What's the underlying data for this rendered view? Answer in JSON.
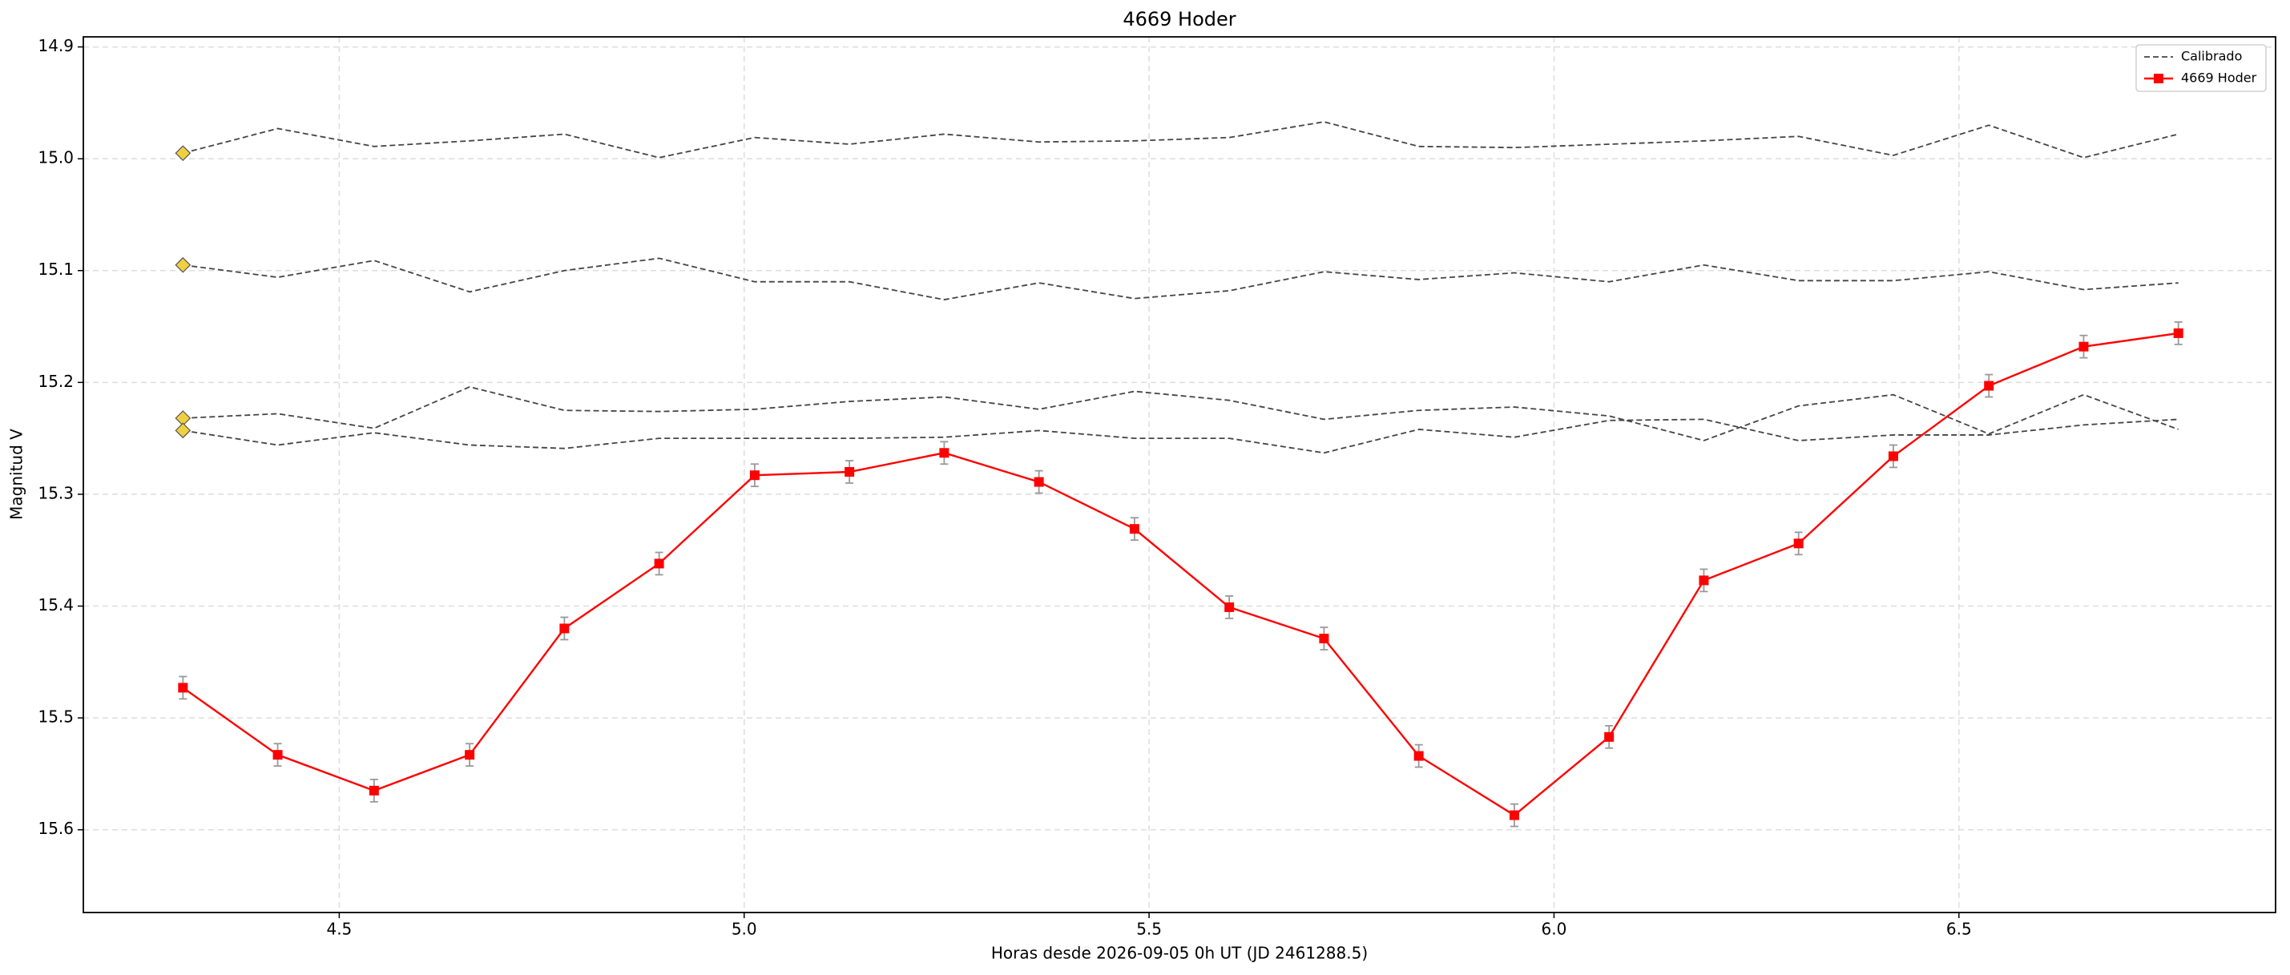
{
  "chart_data": {
    "type": "line",
    "title": "4669 Hoder",
    "xlabel": "Horas desde 2026-09-05 0h UT (JD 2461288.5)",
    "ylabel": "Magnitud V",
    "x": [
      4.307,
      4.424,
      4.543,
      4.661,
      4.778,
      4.895,
      5.013,
      5.13,
      5.247,
      5.364,
      5.482,
      5.599,
      5.716,
      5.833,
      5.951,
      6.068,
      6.185,
      6.302,
      6.419,
      6.537,
      6.654,
      6.771
    ],
    "series": [
      {
        "name": "Calibrado",
        "color": "#444444",
        "dashed": true,
        "marker_color": "#f0d040",
        "lines": [
          [
            14.995,
            14.973,
            14.989,
            14.984,
            14.978,
            14.999,
            14.981,
            14.987,
            14.978,
            14.985,
            14.984,
            14.981,
            14.967,
            14.989,
            14.99,
            14.987,
            14.984,
            14.98,
            14.997,
            14.97,
            14.999,
            14.978
          ],
          [
            15.095,
            15.106,
            15.091,
            15.119,
            15.1,
            15.089,
            15.11,
            15.11,
            15.126,
            15.111,
            15.125,
            15.118,
            15.101,
            15.108,
            15.102,
            15.11,
            15.095,
            15.109,
            15.109,
            15.101,
            15.117,
            15.111
          ],
          [
            15.232,
            15.228,
            15.241,
            15.204,
            15.225,
            15.226,
            15.224,
            15.217,
            15.213,
            15.224,
            15.208,
            15.216,
            15.233,
            15.225,
            15.222,
            15.23,
            15.252,
            15.221,
            15.211,
            15.246,
            15.211,
            15.242
          ],
          [
            15.243,
            15.256,
            15.245,
            15.256,
            15.259,
            15.25,
            15.25,
            15.25,
            15.249,
            15.243,
            15.25,
            15.25,
            15.263,
            15.242,
            15.249,
            15.234,
            15.233,
            15.252,
            15.247,
            15.247,
            15.238,
            15.233
          ]
        ]
      },
      {
        "name": "4669 Hoder",
        "color": "#ff0000",
        "error_color": "#999999",
        "values": [
          15.473,
          15.533,
          15.565,
          15.533,
          15.42,
          15.362,
          15.283,
          15.28,
          15.263,
          15.289,
          15.331,
          15.401,
          15.429,
          15.534,
          15.587,
          15.517,
          15.377,
          15.344,
          15.266,
          15.203,
          15.168,
          15.156
        ],
        "errors": [
          0.01,
          0.01,
          0.01,
          0.01,
          0.01,
          0.01,
          0.01,
          0.01,
          0.01,
          0.01,
          0.01,
          0.01,
          0.01,
          0.01,
          0.01,
          0.01,
          0.01,
          0.01,
          0.01,
          0.01,
          0.01,
          0.01
        ]
      }
    ],
    "xlim": [
      4.184,
      6.891
    ],
    "ylim": [
      14.891,
      15.674
    ],
    "y_inverted": true,
    "xticks": [
      4.5,
      {
        "value": 5,
        "label": "5.0"
      },
      5.5,
      {
        "value": 6,
        "label": "6.0"
      },
      6.5
    ],
    "yticks": [
      14.9,
      {
        "value": 15,
        "label": "15.0"
      },
      15.1,
      15.2,
      15.3,
      15.4,
      15.5,
      15.6
    ],
    "grid": true,
    "legend": "upper-right"
  }
}
